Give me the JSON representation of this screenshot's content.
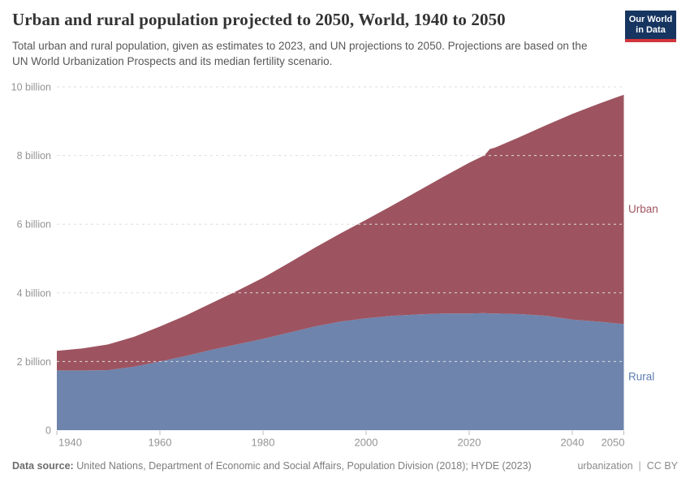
{
  "header": {
    "title": "Urban and rural population projected to 2050, World, 1940 to 2050",
    "subtitle": "Total urban and rural population, given as estimates to 2023, and UN projections to 2050. Projections are based on the UN World Urbanization Prospects and its median fertility scenario.",
    "logo": {
      "line1": "Our World",
      "line2": "in Data",
      "bg": "#163560",
      "accent": "#d2353c"
    }
  },
  "footer": {
    "source_label": "Data source:",
    "source_text": "United Nations, Department of Economic and Social Affairs, Population Division (2018); HYDE (2023)",
    "slug": "urbanization",
    "separator": "|",
    "license": "CC BY"
  },
  "chart_data": {
    "type": "area",
    "stacked": true,
    "title": "Urban and rural population projected to 2050, World, 1940 to 2050",
    "units": "billion",
    "xlim": [
      1940,
      2050
    ],
    "ylim": [
      0,
      10
    ],
    "grid": "dashed",
    "legend_position": "right-edge-labels",
    "estimates_until": 2023,
    "projection_source": "UN World Urbanization Prospects",
    "x": [
      1940,
      1945,
      1950,
      1955,
      1960,
      1965,
      1970,
      1975,
      1980,
      1985,
      1990,
      1995,
      2000,
      2005,
      2010,
      2015,
      2020,
      2023,
      2024,
      2025,
      2030,
      2035,
      2040,
      2045,
      2050
    ],
    "series": [
      {
        "name": "Rural",
        "color": "#6e84ad",
        "label_color": "#5e7cb2",
        "values": [
          1.74,
          1.74,
          1.75,
          1.85,
          2.0,
          2.16,
          2.34,
          2.5,
          2.66,
          2.84,
          3.02,
          3.16,
          3.26,
          3.33,
          3.37,
          3.4,
          3.4,
          3.41,
          3.4,
          3.4,
          3.38,
          3.33,
          3.22,
          3.16,
          3.09
        ]
      },
      {
        "name": "Urban",
        "color": "#9d5460",
        "label_color": "#a0545f",
        "values": [
          0.57,
          0.64,
          0.75,
          0.87,
          1.02,
          1.18,
          1.36,
          1.56,
          1.78,
          2.03,
          2.29,
          2.57,
          2.87,
          3.21,
          3.59,
          3.98,
          4.39,
          4.6,
          4.79,
          4.83,
          5.17,
          5.56,
          5.99,
          6.34,
          6.68
        ]
      }
    ],
    "yticks": {
      "values": [
        0,
        2,
        4,
        6,
        8,
        10
      ],
      "labels": [
        "0",
        "2 billion",
        "4 billion",
        "6 billion",
        "8 billion",
        "10 billion"
      ]
    },
    "xticks": [
      1940,
      1960,
      1980,
      2000,
      2020,
      2040,
      2050
    ]
  }
}
